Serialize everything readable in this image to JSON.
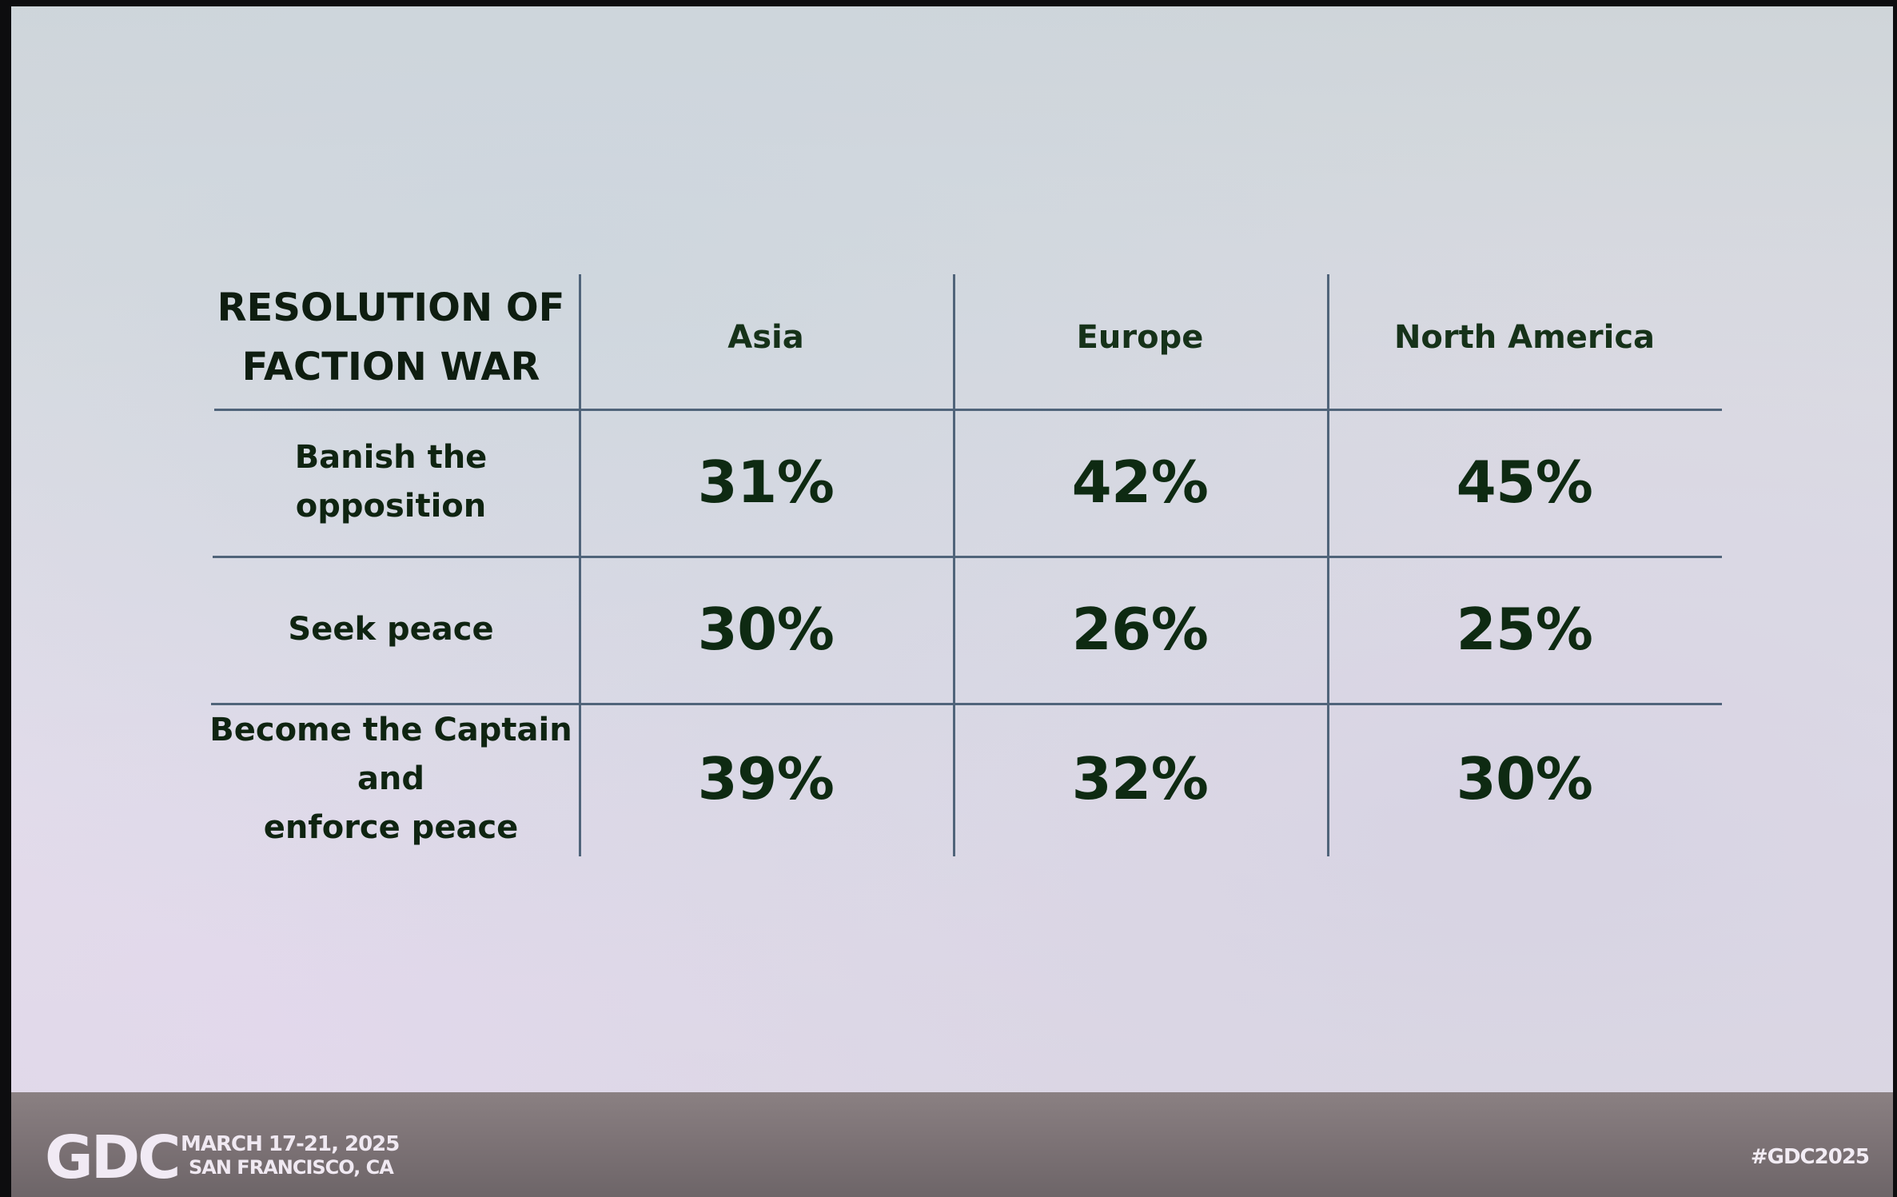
{
  "table": {
    "title_lines": [
      "RESOLUTION OF",
      "FACTION WAR"
    ],
    "columns": [
      "Asia",
      "Europe",
      "North America"
    ],
    "rows": [
      {
        "label_lines": [
          "Banish the opposition"
        ],
        "values": [
          "31%",
          "42%",
          "45%"
        ]
      },
      {
        "label_lines": [
          "Seek peace"
        ],
        "values": [
          "30%",
          "26%",
          "25%"
        ]
      },
      {
        "label_lines": [
          "Become the Captain and",
          "enforce peace"
        ],
        "values": [
          "39%",
          "32%",
          "30%"
        ]
      }
    ]
  },
  "footer": {
    "logo": "GDC",
    "dates": "MARCH 17-21, 2025",
    "location": "SAN FRANCISCO, CA",
    "hashtag": "#GDC2025"
  }
}
